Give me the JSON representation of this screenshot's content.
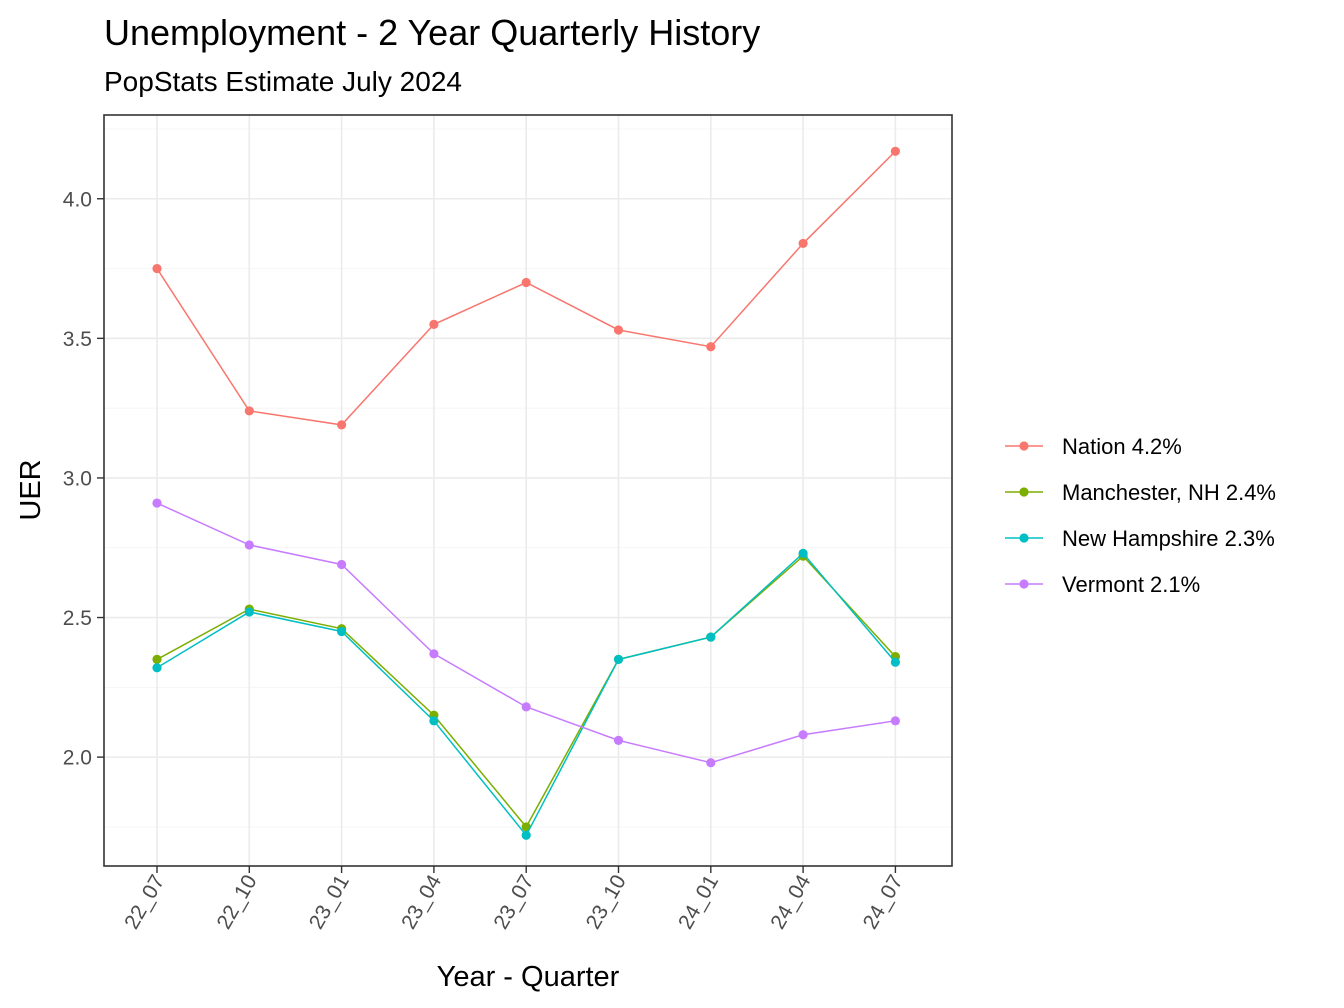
{
  "chart_data": {
    "type": "line",
    "title": "Unemployment - 2 Year Quarterly History",
    "subtitle": "PopStats Estimate July 2024",
    "xlabel": "Year - Quarter",
    "ylabel": "UER",
    "categories": [
      "22_07",
      "22_10",
      "23_01",
      "23_04",
      "23_07",
      "23_10",
      "24_01",
      "24_04",
      "24_07"
    ],
    "ylim": [
      1.61,
      4.3
    ],
    "yticks": [
      2.0,
      2.5,
      3.0,
      3.5,
      4.0
    ],
    "ytick_labels": [
      "2.0",
      "2.5",
      "3.0",
      "3.5",
      "4.0"
    ],
    "grid": true,
    "legend_position": "right",
    "series": [
      {
        "name": "Nation 4.2%",
        "color": "#F8766D",
        "values": [
          3.75,
          3.24,
          3.19,
          3.55,
          3.7,
          3.53,
          3.47,
          3.84,
          4.17
        ]
      },
      {
        "name": "Manchester, NH 2.4%",
        "color": "#7CAE00",
        "values": [
          2.35,
          2.53,
          2.46,
          2.15,
          1.75,
          2.35,
          2.43,
          2.72,
          2.36
        ]
      },
      {
        "name": "New Hampshire 2.3%",
        "color": "#00BFC4",
        "values": [
          2.32,
          2.52,
          2.45,
          2.13,
          1.72,
          2.35,
          2.43,
          2.73,
          2.34
        ]
      },
      {
        "name": "Vermont 2.1%",
        "color": "#C77CFF",
        "values": [
          2.91,
          2.76,
          2.69,
          2.37,
          2.18,
          2.06,
          1.98,
          2.08,
          2.13
        ]
      }
    ]
  }
}
